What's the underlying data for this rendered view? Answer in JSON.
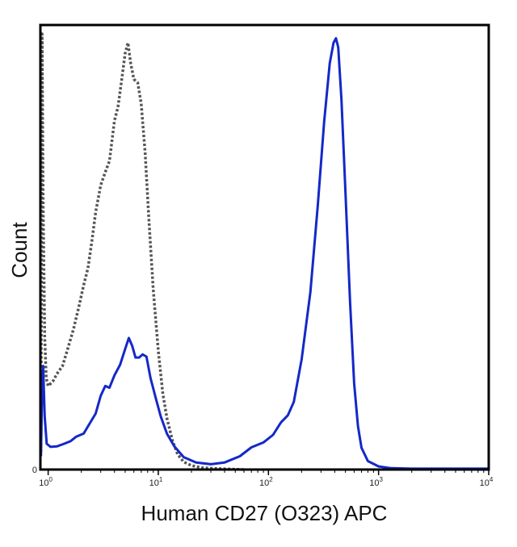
{
  "chart_data": {
    "type": "line",
    "xlabel": "Human CD27 (O323) APC",
    "ylabel": "Count",
    "xscale": "log",
    "xlim": [
      0.85,
      10000
    ],
    "ylim": [
      0,
      100
    ],
    "grid": false,
    "legend": "none",
    "x_ticks": [
      {
        "value": 1,
        "base": "10",
        "exp": "0"
      },
      {
        "value": 10,
        "base": "10",
        "exp": "1"
      },
      {
        "value": 100,
        "base": "10",
        "exp": "2"
      },
      {
        "value": 1000,
        "base": "10",
        "exp": "3"
      },
      {
        "value": 10000,
        "base": "10",
        "exp": "4"
      }
    ],
    "y_ticks": [
      {
        "value": 0,
        "label": "0"
      }
    ],
    "series": [
      {
        "style": "dotted",
        "color": "#555555",
        "points": [
          [
            0.86,
            4
          ],
          [
            0.87,
            50
          ],
          [
            0.88,
            98
          ],
          [
            0.9,
            60
          ],
          [
            0.93,
            30
          ],
          [
            0.96,
            20.6
          ],
          [
            1.0,
            18.8
          ],
          [
            1.1,
            19.8
          ],
          [
            1.2,
            21.5
          ],
          [
            1.35,
            23.3
          ],
          [
            1.5,
            27.0
          ],
          [
            1.7,
            31.6
          ],
          [
            1.9,
            36.6
          ],
          [
            2.1,
            41.5
          ],
          [
            2.3,
            45.3
          ],
          [
            2.5,
            51.6
          ],
          [
            2.7,
            57.9
          ],
          [
            3.0,
            64.0
          ],
          [
            3.3,
            66.9
          ],
          [
            3.6,
            69.4
          ],
          [
            4.0,
            78.5
          ],
          [
            4.3,
            81.5
          ],
          [
            4.6,
            86.8
          ],
          [
            5.0,
            93.6
          ],
          [
            5.3,
            96.0
          ],
          [
            5.6,
            91.6
          ],
          [
            6.0,
            87.8
          ],
          [
            6.5,
            87.0
          ],
          [
            7.0,
            82.3
          ],
          [
            7.6,
            71.2
          ],
          [
            8.2,
            56.6
          ],
          [
            9.0,
            40.5
          ],
          [
            10.0,
            26.6
          ],
          [
            11.0,
            17.0
          ],
          [
            12.0,
            11.4
          ],
          [
            13.5,
            6.4
          ],
          [
            15.0,
            3.4
          ],
          [
            17.0,
            1.7
          ],
          [
            20.0,
            0.9
          ],
          [
            25.0,
            0.4
          ],
          [
            35.0,
            0.2
          ],
          [
            60.0,
            0
          ]
        ]
      },
      {
        "style": "solid",
        "color": "#1428c8",
        "points": [
          [
            0.86,
            3
          ],
          [
            0.88,
            18
          ],
          [
            0.9,
            23.3
          ],
          [
            0.93,
            12
          ],
          [
            0.97,
            5.8
          ],
          [
            1.05,
            5.1
          ],
          [
            1.2,
            5.2
          ],
          [
            1.4,
            5.8
          ],
          [
            1.6,
            6.4
          ],
          [
            1.8,
            7.4
          ],
          [
            2.1,
            8.1
          ],
          [
            2.4,
            10.5
          ],
          [
            2.7,
            12.6
          ],
          [
            3.0,
            16.6
          ],
          [
            3.3,
            18.8
          ],
          [
            3.6,
            18.4
          ],
          [
            4.0,
            21.2
          ],
          [
            4.5,
            23.6
          ],
          [
            5.0,
            27.1
          ],
          [
            5.4,
            29.6
          ],
          [
            5.8,
            27.8
          ],
          [
            6.2,
            25.2
          ],
          [
            6.7,
            25.2
          ],
          [
            7.2,
            25.9
          ],
          [
            7.8,
            25.4
          ],
          [
            8.5,
            20.6
          ],
          [
            9.5,
            16.0
          ],
          [
            10.5,
            12.0
          ],
          [
            12.0,
            8.0
          ],
          [
            14.0,
            5.2
          ],
          [
            17.0,
            2.8
          ],
          [
            22.0,
            1.6
          ],
          [
            30.0,
            1.2
          ],
          [
            40.0,
            1.6
          ],
          [
            55.0,
            3.0
          ],
          [
            70.0,
            5.0
          ],
          [
            90.0,
            6.1
          ],
          [
            110.0,
            7.8
          ],
          [
            130.0,
            10.6
          ],
          [
            150.0,
            12.2
          ],
          [
            170.0,
            15.2
          ],
          [
            200.0,
            24.8
          ],
          [
            240.0,
            39.9
          ],
          [
            280.0,
            59.2
          ],
          [
            320.0,
            78.1
          ],
          [
            360.0,
            91.4
          ],
          [
            390.0,
            96.0
          ],
          [
            410.0,
            97.0
          ],
          [
            430.0,
            95.0
          ],
          [
            460.0,
            83.2
          ],
          [
            500.0,
            62.6
          ],
          [
            550.0,
            37.9
          ],
          [
            600.0,
            19.4
          ],
          [
            650.0,
            9.8
          ],
          [
            700.0,
            4.9
          ],
          [
            800.0,
            1.9
          ],
          [
            1000.0,
            0.7
          ],
          [
            1300.0,
            0.3
          ],
          [
            2000.0,
            0.2
          ],
          [
            5000.0,
            0.2
          ],
          [
            10000.0,
            0.2
          ]
        ]
      }
    ]
  }
}
